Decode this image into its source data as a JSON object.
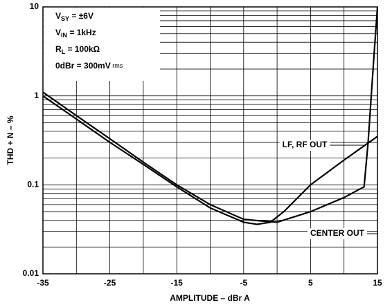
{
  "chart_data": {
    "type": "line",
    "xlabel": "AMPLITUDE – dBr A",
    "ylabel": "THD + N – %",
    "yscale": "log",
    "xlim": [
      -35,
      15
    ],
    "xticks": [
      -35,
      -25,
      -15,
      -5,
      5,
      15
    ],
    "x_minor_ticks": [
      -30,
      -20,
      -10,
      0,
      10
    ],
    "ylim": [
      0.01,
      10
    ],
    "yticks": [
      0.01,
      0.1,
      1,
      10
    ],
    "y_minor_ticks": [
      0.02,
      0.03,
      0.04,
      0.05,
      0.06,
      0.07,
      0.08,
      0.09,
      0.2,
      0.3,
      0.4,
      0.5,
      0.6,
      0.7,
      0.8,
      0.9,
      2,
      3,
      4,
      5,
      6,
      7,
      8,
      9
    ],
    "grid": true,
    "conditions": [
      {
        "main": "V",
        "sub": "SY",
        "rest": " = ±6V"
      },
      {
        "main": "V",
        "sub": "IN",
        "rest": " = 1kHz"
      },
      {
        "main": "R",
        "sub": "L",
        "rest": " = 100kΩ"
      },
      {
        "main": "0dBr = 300mV",
        "small": " rms"
      }
    ],
    "series": [
      {
        "name": "LF, RF OUT",
        "color": "#000000",
        "x": [
          -35,
          -30,
          -25,
          -20,
          -15,
          -10,
          -5,
          -3,
          -1,
          1,
          5,
          10,
          15
        ],
        "values": [
          1.0,
          0.55,
          0.3,
          0.17,
          0.095,
          0.055,
          0.038,
          0.036,
          0.038,
          0.05,
          0.1,
          0.19,
          0.35
        ]
      },
      {
        "name": "CENTER OUT",
        "color": "#000000",
        "x": [
          -35,
          -30,
          -25,
          -20,
          -15,
          -10,
          -5,
          -2,
          0,
          5,
          10,
          13,
          13.6,
          14.5,
          15
        ],
        "values": [
          1.1,
          0.6,
          0.33,
          0.18,
          0.1,
          0.06,
          0.041,
          0.039,
          0.038,
          0.05,
          0.072,
          0.095,
          0.3,
          3,
          10
        ]
      }
    ]
  }
}
